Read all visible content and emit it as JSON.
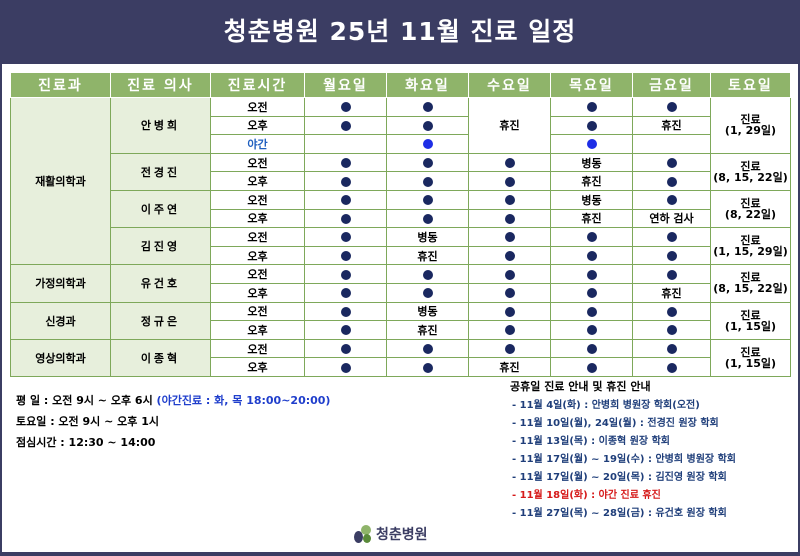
{
  "title": "청춘병원 25년 11월 진료 일정",
  "columns": [
    "진료과",
    "진료 의사",
    "진료시간",
    "월요일",
    "화요일",
    "수요일",
    "목요일",
    "금요일",
    "토요일"
  ],
  "labels": {
    "am": "오전",
    "pm": "오후",
    "night": "야간"
  },
  "departments": {
    "rehab": "재활의학과",
    "family": "가정의학과",
    "neuro": "신경과",
    "radio": "영상의학과"
  },
  "doctors": {
    "d1": "안병희",
    "d2": "전경진",
    "d3": "이주연",
    "d4": "김진영",
    "d5": "유건호",
    "d6": "정규은",
    "d7": "이종혁"
  },
  "marks": {
    "closed": "휴진",
    "ward": "병동",
    "swallow": "연하 검사"
  },
  "saturday": {
    "d1": {
      "l1": "진료",
      "l2": "(1, 29일)"
    },
    "d2": {
      "l1": "진료",
      "l2": "(8, 15, 22일)"
    },
    "d3": {
      "l1": "진료",
      "l2": "(8, 22일)"
    },
    "d4": {
      "l1": "진료",
      "l2": "(1, 15, 29일)"
    },
    "d5": {
      "l1": "진료",
      "l2": "(8, 15, 22일)"
    },
    "d6": {
      "l1": "진료",
      "l2": "(1, 15일)"
    },
    "d7": {
      "l1": "진료",
      "l2": "(1, 15일)"
    }
  },
  "hours": {
    "weekday": "평  일 : 오전 9시 ~ 오후 6시",
    "night": "(야간진료 : 화, 목 18:00~20:00)",
    "saturday": "토요일 : 오전 9시 ~ 오후 1시",
    "lunch": "점심시간 : 12:30 ~ 14:00"
  },
  "notice_title": "공휴일 진료 안내 및 휴진 안내",
  "notices": [
    "- 11월 4일(화) : 안병희 병원장 학회(오전)",
    "- 11월 10일(월), 24일(월) : 전경진 원장 학회",
    "- 11월 13일(목) : 이종혁 원장 학회",
    "- 11월 17일(월) ~ 19일(수) : 안병희 병원장 학회",
    "- 11월 17일(월) ~ 20일(목) : 김진영 원장 학회",
    "- 11월 18일(화) : 야간 진료 휴진",
    "- 11월 27일(목) ~ 28일(금) : 유건호 원장 학회"
  ],
  "logo": "청춘병원",
  "colors": {
    "header": "#3b3d63",
    "table_head": "#8fb46a",
    "cell_bg": "#e7efdc",
    "red": "#d61a1a",
    "blue": "#1f3ecc"
  }
}
